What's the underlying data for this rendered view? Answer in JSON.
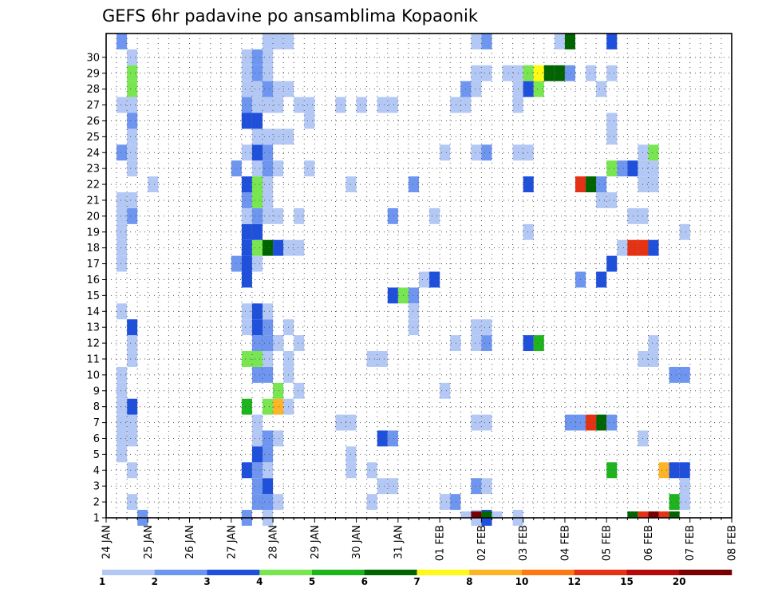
{
  "chart_data": {
    "type": "heatmap",
    "title": "GEFS 6hr padavine po ansamblima Kopaonik",
    "x_tick_labels": [
      "24 JAN",
      "25 JAN",
      "26 JAN",
      "27 JAN",
      "28 JAN",
      "29 JAN",
      "30 JAN",
      "31 JAN",
      "01 FEB",
      "02 FEB",
      "03 FEB",
      "04 FEB",
      "05 FEB",
      "06 FEB",
      "07 FEB",
      "08 FEB"
    ],
    "y_tick_labels": [
      "1",
      "2",
      "3",
      "4",
      "5",
      "6",
      "7",
      "8",
      "9",
      "10",
      "11",
      "12",
      "13",
      "14",
      "15",
      "16",
      "17",
      "18",
      "19",
      "20",
      "21",
      "22",
      "23",
      "24",
      "25",
      "26",
      "27",
      "28",
      "29",
      "30"
    ],
    "xlim_6h_steps": [
      0,
      60
    ],
    "ylim_member": [
      0,
      30
    ],
    "grid": true,
    "colorbar": {
      "tick_labels": [
        "1",
        "2",
        "3",
        "4",
        "5",
        "6",
        "7",
        "8",
        "10",
        "12",
        "15",
        "20"
      ],
      "colors": [
        "#b4c8f5",
        "#6e96f0",
        "#1e50dc",
        "#78e650",
        "#1eb41e",
        "#006400",
        "#fffa14",
        "#ffb428",
        "#ff7814",
        "#e63214",
        "#b40a0a",
        "#780000"
      ]
    },
    "cells": [
      [
        3,
        0,
        2
      ],
      [
        2,
        1,
        1
      ],
      [
        2,
        3,
        1
      ],
      [
        1,
        4,
        1
      ],
      [
        2,
        5,
        1
      ],
      [
        1,
        5,
        1
      ],
      [
        1,
        6,
        1
      ],
      [
        2,
        6,
        1
      ],
      [
        2,
        7,
        3
      ],
      [
        1,
        7,
        1
      ],
      [
        1,
        8,
        1
      ],
      [
        1,
        9,
        1
      ],
      [
        2,
        10,
        1
      ],
      [
        2,
        11,
        1
      ],
      [
        2,
        12,
        3
      ],
      [
        1,
        13,
        1
      ],
      [
        1,
        16,
        1
      ],
      [
        1,
        17,
        1
      ],
      [
        1,
        18,
        1
      ],
      [
        2,
        19,
        2
      ],
      [
        1,
        19,
        1
      ],
      [
        1,
        20,
        1
      ],
      [
        2,
        20,
        1
      ],
      [
        2,
        22,
        1
      ],
      [
        1,
        23,
        2
      ],
      [
        2,
        23,
        1
      ],
      [
        2,
        24,
        1
      ],
      [
        2,
        25,
        2
      ],
      [
        1,
        26,
        1
      ],
      [
        2,
        26,
        1
      ],
      [
        2,
        27,
        4
      ],
      [
        2,
        28,
        4
      ],
      [
        2,
        29,
        1
      ],
      [
        1,
        30,
        2
      ],
      [
        4,
        21,
        1
      ],
      [
        13,
        0,
        2
      ],
      [
        15,
        0,
        1
      ],
      [
        14,
        1,
        2
      ],
      [
        15,
        1,
        2
      ],
      [
        16,
        1,
        1
      ],
      [
        14,
        2,
        2
      ],
      [
        15,
        2,
        3
      ],
      [
        13,
        3,
        3
      ],
      [
        14,
        3,
        2
      ],
      [
        15,
        3,
        1
      ],
      [
        14,
        4,
        3
      ],
      [
        15,
        4,
        2
      ],
      [
        14,
        5,
        1
      ],
      [
        15,
        5,
        2
      ],
      [
        16,
        5,
        1
      ],
      [
        14,
        6,
        1
      ],
      [
        13,
        7,
        5
      ],
      [
        15,
        7,
        4
      ],
      [
        16,
        7,
        8
      ],
      [
        17,
        7,
        1
      ],
      [
        16,
        8,
        4
      ],
      [
        14,
        9,
        2
      ],
      [
        15,
        9,
        2
      ],
      [
        13,
        10,
        4
      ],
      [
        14,
        10,
        4
      ],
      [
        15,
        10,
        1
      ],
      [
        14,
        11,
        2
      ],
      [
        15,
        11,
        2
      ],
      [
        16,
        11,
        2
      ],
      [
        13,
        12,
        1
      ],
      [
        14,
        12,
        3
      ],
      [
        15,
        12,
        2
      ],
      [
        17,
        12,
        1
      ],
      [
        13,
        13,
        1
      ],
      [
        14,
        13,
        3
      ],
      [
        15,
        13,
        1
      ],
      [
        13,
        15,
        3
      ],
      [
        12,
        16,
        2
      ],
      [
        13,
        16,
        3
      ],
      [
        14,
        16,
        1
      ],
      [
        13,
        17,
        3
      ],
      [
        14,
        17,
        4
      ],
      [
        15,
        17,
        6
      ],
      [
        16,
        17,
        3
      ],
      [
        17,
        17,
        1
      ],
      [
        18,
        17,
        1
      ],
      [
        13,
        18,
        3
      ],
      [
        14,
        18,
        3
      ],
      [
        13,
        19,
        1
      ],
      [
        14,
        19,
        2
      ],
      [
        15,
        19,
        1
      ],
      [
        16,
        19,
        1
      ],
      [
        13,
        20,
        2
      ],
      [
        14,
        20,
        4
      ],
      [
        15,
        20,
        1
      ],
      [
        13,
        21,
        3
      ],
      [
        14,
        21,
        4
      ],
      [
        15,
        21,
        1
      ],
      [
        12,
        22,
        2
      ],
      [
        14,
        22,
        1
      ],
      [
        15,
        22,
        2
      ],
      [
        16,
        22,
        1
      ],
      [
        13,
        23,
        1
      ],
      [
        14,
        23,
        3
      ],
      [
        15,
        23,
        2
      ],
      [
        14,
        24,
        1
      ],
      [
        15,
        24,
        1
      ],
      [
        16,
        24,
        1
      ],
      [
        17,
        24,
        1
      ],
      [
        13,
        25,
        3
      ],
      [
        14,
        25,
        3
      ],
      [
        13,
        26,
        2
      ],
      [
        14,
        26,
        1
      ],
      [
        15,
        26,
        1
      ],
      [
        16,
        26,
        1
      ],
      [
        13,
        27,
        1
      ],
      [
        14,
        27,
        1
      ],
      [
        15,
        27,
        2
      ],
      [
        16,
        27,
        1
      ],
      [
        17,
        27,
        1
      ],
      [
        13,
        28,
        1
      ],
      [
        14,
        28,
        2
      ],
      [
        15,
        28,
        1
      ],
      [
        13,
        29,
        1
      ],
      [
        14,
        29,
        2
      ],
      [
        15,
        29,
        1
      ],
      [
        15,
        30,
        1
      ],
      [
        16,
        30,
        1
      ],
      [
        17,
        30,
        1
      ],
      [
        18,
        8,
        1
      ],
      [
        17,
        9,
        1
      ],
      [
        17,
        10,
        1
      ],
      [
        16,
        11,
        1
      ],
      [
        18,
        11,
        1
      ],
      [
        17,
        10,
        1
      ],
      [
        19,
        25,
        1
      ],
      [
        19,
        22,
        1
      ],
      [
        18,
        26,
        1
      ],
      [
        19,
        26,
        1
      ],
      [
        18,
        19,
        1
      ],
      [
        23,
        4,
        1
      ],
      [
        23,
        3,
        1
      ],
      [
        22,
        6,
        1
      ],
      [
        23,
        6,
        1
      ],
      [
        22,
        26,
        1
      ],
      [
        25,
        1,
        1
      ],
      [
        25,
        10,
        1
      ],
      [
        26,
        5,
        3
      ],
      [
        27,
        5,
        2
      ],
      [
        27,
        2,
        1
      ],
      [
        26,
        2,
        1
      ],
      [
        25,
        3,
        1
      ],
      [
        24,
        26,
        1
      ],
      [
        23,
        21,
        1
      ],
      [
        27,
        19,
        2
      ],
      [
        27,
        14,
        3
      ],
      [
        28,
        14,
        4
      ],
      [
        29,
        14,
        2
      ],
      [
        29,
        13,
        1
      ],
      [
        30,
        15,
        1
      ],
      [
        31,
        15,
        3
      ],
      [
        29,
        21,
        2
      ],
      [
        29,
        12,
        1
      ],
      [
        26,
        26,
        1
      ],
      [
        27,
        26,
        1
      ],
      [
        26,
        10,
        1
      ],
      [
        32,
        1,
        1
      ],
      [
        32,
        8,
        1
      ],
      [
        31,
        19,
        1
      ],
      [
        33,
        1,
        2
      ],
      [
        33,
        26,
        1
      ],
      [
        34,
        26,
        1
      ],
      [
        32,
        23,
        1
      ],
      [
        33,
        11,
        1
      ],
      [
        35,
        0,
        1
      ],
      [
        36,
        0,
        3
      ],
      [
        36,
        30,
        2
      ],
      [
        35,
        2,
        2
      ],
      [
        36,
        2,
        1
      ],
      [
        35,
        6,
        1
      ],
      [
        36,
        6,
        1
      ],
      [
        35,
        11,
        1
      ],
      [
        36,
        11,
        2
      ],
      [
        35,
        12,
        1
      ],
      [
        36,
        12,
        1
      ],
      [
        35,
        23,
        1
      ],
      [
        36,
        23,
        2
      ],
      [
        34,
        27,
        2
      ],
      [
        35,
        27,
        1
      ],
      [
        35,
        28,
        1
      ],
      [
        36,
        28,
        1
      ],
      [
        35,
        30,
        1
      ],
      [
        34,
        -1,
        1
      ],
      [
        35,
        -1,
        12
      ],
      [
        36,
        -1,
        6
      ],
      [
        37,
        -1,
        1
      ],
      [
        39,
        0,
        1
      ],
      [
        39,
        27,
        1
      ],
      [
        40,
        27,
        3
      ],
      [
        41,
        27,
        4
      ],
      [
        38,
        28,
        1
      ],
      [
        39,
        28,
        1
      ],
      [
        40,
        28,
        4
      ],
      [
        41,
        28,
        7
      ],
      [
        42,
        28,
        6
      ],
      [
        43,
        28,
        6
      ],
      [
        44,
        28,
        2
      ],
      [
        40,
        11,
        3
      ],
      [
        41,
        11,
        5
      ],
      [
        40,
        21,
        3
      ],
      [
        39,
        23,
        1
      ],
      [
        40,
        23,
        1
      ],
      [
        40,
        18,
        1
      ],
      [
        39,
        26,
        1
      ],
      [
        43,
        30,
        1
      ],
      [
        44,
        30,
        6
      ],
      [
        44,
        6,
        2
      ],
      [
        45,
        6,
        2
      ],
      [
        46,
        6,
        10
      ],
      [
        47,
        6,
        6
      ],
      [
        48,
        6,
        2
      ],
      [
        47,
        21,
        2
      ],
      [
        45,
        21,
        10
      ],
      [
        46,
        21,
        6
      ],
      [
        47,
        15,
        3
      ],
      [
        45,
        15,
        2
      ],
      [
        48,
        24,
        1
      ],
      [
        48,
        25,
        1
      ],
      [
        47,
        27,
        1
      ],
      [
        46,
        28,
        1
      ],
      [
        48,
        28,
        1
      ],
      [
        48,
        30,
        3
      ],
      [
        47,
        20,
        1
      ],
      [
        48,
        20,
        1
      ],
      [
        48,
        22,
        4
      ],
      [
        48,
        3,
        5
      ],
      [
        49,
        17,
        1
      ],
      [
        50,
        17,
        10
      ],
      [
        51,
        17,
        10
      ],
      [
        52,
        17,
        3
      ],
      [
        48,
        16,
        3
      ],
      [
        49,
        22,
        2
      ],
      [
        50,
        22,
        3
      ],
      [
        51,
        22,
        1
      ],
      [
        52,
        22,
        1
      ],
      [
        51,
        23,
        1
      ],
      [
        52,
        23,
        4
      ],
      [
        51,
        19,
        1
      ],
      [
        50,
        19,
        1
      ],
      [
        51,
        21,
        1
      ],
      [
        52,
        21,
        1
      ],
      [
        52,
        11,
        1
      ],
      [
        52,
        10,
        1
      ],
      [
        51,
        10,
        1
      ],
      [
        55,
        18,
        1
      ],
      [
        54,
        9,
        2
      ],
      [
        55,
        9,
        2
      ],
      [
        53,
        3,
        8
      ],
      [
        54,
        3,
        3
      ],
      [
        55,
        3,
        3
      ],
      [
        55,
        2,
        1
      ],
      [
        54,
        1,
        5
      ],
      [
        51,
        5,
        1
      ],
      [
        55,
        1,
        1
      ],
      [
        50,
        -1,
        6
      ],
      [
        51,
        -1,
        10
      ],
      [
        52,
        -1,
        12
      ],
      [
        53,
        -1,
        10
      ],
      [
        54,
        -1,
        6
      ]
    ]
  }
}
